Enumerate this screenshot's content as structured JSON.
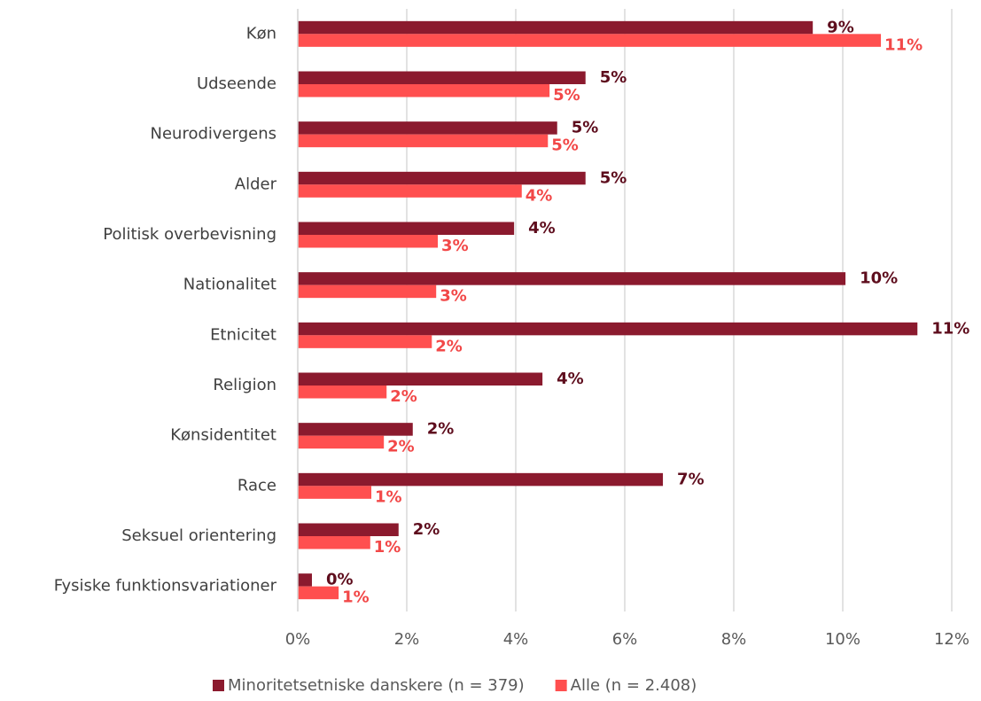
{
  "chart_data": {
    "type": "barh",
    "categories": [
      "Køn",
      "Udseende",
      "Neurodivergens",
      "Alder",
      "Politisk overbevisning",
      "Nationalitet",
      "Etnicitet",
      "Religion",
      "Kønsidentitet",
      "Race",
      "Seksuel orientering",
      "Fysiske funktionsvariationer"
    ],
    "series": [
      {
        "name": "Minoritetsetniske danskere (n = 379)",
        "color": "#8b1a2e",
        "label_color": "#5e0d1d",
        "values": [
          9.45,
          5.28,
          4.76,
          5.28,
          3.97,
          10.05,
          11.37,
          4.49,
          2.11,
          6.7,
          1.85,
          0.26
        ],
        "value_labels": [
          "9%",
          "5%",
          "5%",
          "5%",
          "4%",
          "10%",
          "11%",
          "4%",
          "2%",
          "7%",
          "2%",
          "0%"
        ]
      },
      {
        "name": "Alle (n = 2.408)",
        "color": "#ff4f4f",
        "label_color": "#f24848",
        "values": [
          10.7,
          4.62,
          4.59,
          4.11,
          2.57,
          2.54,
          2.46,
          1.63,
          1.58,
          1.35,
          1.33,
          0.75
        ],
        "value_labels": [
          "11%",
          "5%",
          "5%",
          "4%",
          "3%",
          "3%",
          "2%",
          "2%",
          "2%",
          "1%",
          "1%",
          "1%"
        ]
      }
    ],
    "xlim": [
      0,
      12
    ],
    "xticks": [
      {
        "value": 0,
        "label": "0%"
      },
      {
        "value": 2,
        "label": "2%"
      },
      {
        "value": 4,
        "label": "4%"
      },
      {
        "value": 6,
        "label": "6%"
      },
      {
        "value": 8,
        "label": "8%"
      },
      {
        "value": 10,
        "label": "10%"
      },
      {
        "value": 12,
        "label": "12%"
      }
    ],
    "grid": true,
    "legend": "bottom"
  }
}
